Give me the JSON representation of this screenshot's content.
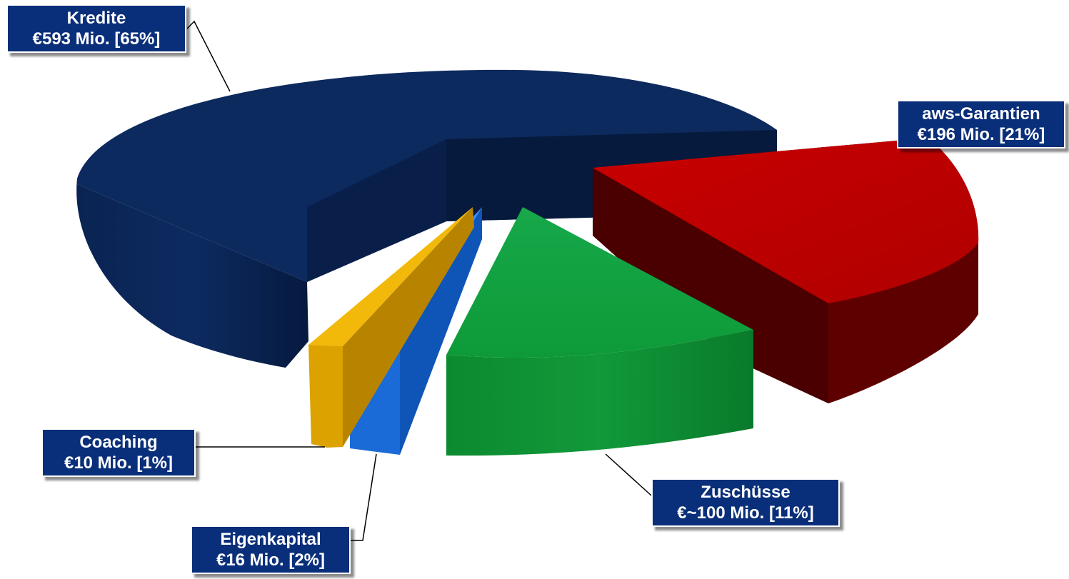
{
  "chart_data": {
    "type": "pie",
    "slices": [
      {
        "name": "Kredite",
        "label": "Kredite",
        "amount_label": "€593 Mio.  [65%]",
        "value_mio": 593,
        "percent": 65,
        "color": "#0d2b5f"
      },
      {
        "name": "aws-Garantien",
        "label": "aws-Garantien",
        "amount_label": "€196 Mio. [21%]",
        "value_mio": 196,
        "percent": 21,
        "color": "#c00000"
      },
      {
        "name": "Zuschüsse",
        "label": "Zuschüsse",
        "amount_label": "€~100 Mio. [11%]",
        "value_mio": 100,
        "percent": 11,
        "color": "#119a3a"
      },
      {
        "name": "Eigenkapital",
        "label": "Eigenkapital",
        "amount_label": "€16 Mio.  [2%]",
        "value_mio": 16,
        "percent": 2,
        "color": "#1f70e0"
      },
      {
        "name": "Coaching",
        "label": "Coaching",
        "amount_label": "€10 Mio. [1%]",
        "value_mio": 10,
        "percent": 1,
        "color": "#e0a800"
      }
    ],
    "exploded": true,
    "style": "3d"
  }
}
